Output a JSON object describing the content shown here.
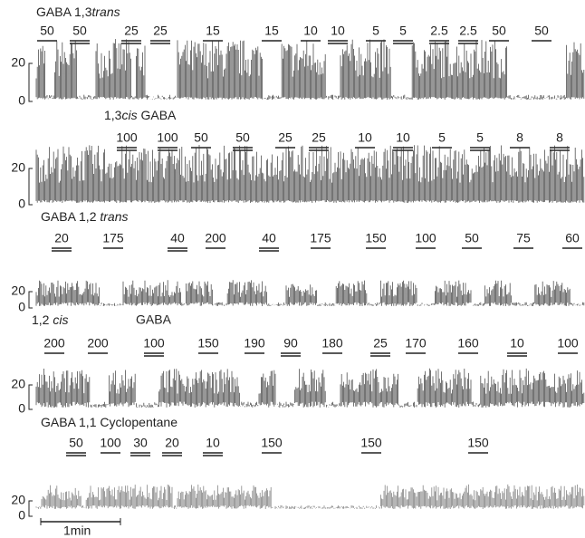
{
  "rows": [
    {
      "label": [
        {
          "text": "GABA 1,3"
        },
        {
          "text": "trans",
          "italic": true
        }
      ],
      "doses": [
        50,
        50,
        25,
        25,
        15,
        15,
        10,
        10,
        5,
        5,
        2.5,
        2.5,
        50,
        50
      ],
      "ytick_top": "20",
      "ytick_bottom": "0"
    },
    {
      "label": [
        {
          "text": "1,3"
        },
        {
          "text": "cis",
          "italic": true
        },
        {
          "text": " GABA"
        }
      ],
      "doses": [
        100,
        100,
        50,
        50,
        25,
        25,
        10,
        10,
        5,
        5,
        8,
        8
      ],
      "ytick_top": "20",
      "ytick_bottom": "0"
    },
    {
      "label": [
        {
          "text": "GABA  1,2 "
        },
        {
          "text": "trans",
          "italic": true
        }
      ],
      "doses": [
        20,
        175,
        40,
        200,
        40,
        175,
        150,
        100,
        50,
        75,
        60
      ],
      "ytick_top": "20",
      "ytick_bottom": "0"
    },
    {
      "label": [
        {
          "text": "1,2 "
        },
        {
          "text": "cis",
          "italic": true
        }
      ],
      "label2": "GABA",
      "doses": [
        200,
        200,
        100,
        150,
        190,
        90,
        180,
        25,
        170,
        160,
        10,
        100
      ],
      "ytick_top": "20",
      "ytick_bottom": "0"
    },
    {
      "label": [
        {
          "text": "GABA  1,1 Cyclopentane"
        }
      ],
      "doses": [
        50,
        100,
        30,
        20,
        10,
        150,
        150,
        150
      ],
      "ytick_top": "20",
      "ytick_bottom": "0"
    }
  ],
  "scale_bar": "1min"
}
